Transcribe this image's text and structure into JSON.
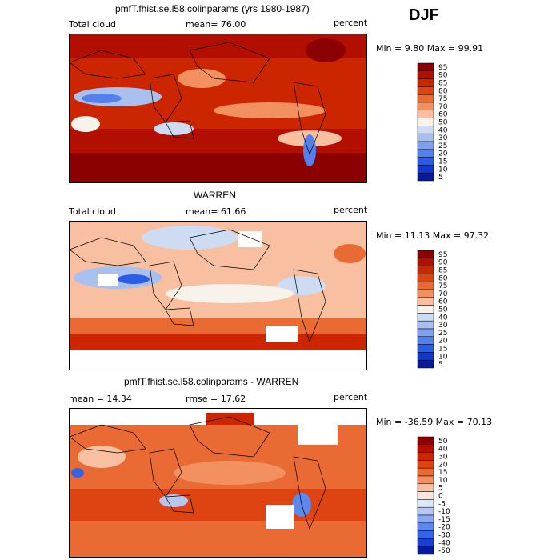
{
  "season": "DJF",
  "panels": [
    {
      "title": "pmfT.fhist.se.l58.colinparams (yrs 1980-1987)",
      "left_label": "Total cloud",
      "mean_text": "mean=  76.00",
      "units": "percent",
      "minmax": "Min =   9.80 Max =  99.91",
      "colorbar_labels": [
        "95",
        "90",
        "85",
        "80",
        "75",
        "70",
        "60",
        "50",
        "40",
        "30",
        "25",
        "20",
        "15",
        "10",
        "5"
      ]
    },
    {
      "title": "WARREN",
      "left_label": "Total cloud",
      "mean_text": "mean=  61.66",
      "units": "percent",
      "minmax": "Min =  11.13 Max =  97.32",
      "colorbar_labels": [
        "95",
        "90",
        "85",
        "80",
        "75",
        "70",
        "60",
        "50",
        "40",
        "30",
        "25",
        "20",
        "15",
        "10",
        "5"
      ]
    },
    {
      "title": "pmfT.fhist.se.l58.colinparams - WARREN",
      "left_label": "mean =  14.34",
      "mean_text": "rmse =  17.62",
      "units": "percent",
      "minmax": "Min = -36.59 Max =  70.13",
      "colorbar_labels": [
        "50",
        "40",
        "30",
        "20",
        "15",
        "10",
        "5",
        "0",
        "-5",
        "-10",
        "-15",
        "-20",
        "-30",
        "-40",
        "-50"
      ]
    }
  ],
  "colors": {
    "seq": [
      "#8b0000",
      "#b30f00",
      "#cc2600",
      "#dd4411",
      "#ea6a33",
      "#f39060",
      "#f8c0a0",
      "#f7f2ea",
      "#cddcf2",
      "#a8c0ee",
      "#7ea0ee",
      "#5380ec",
      "#2a5ce6",
      "#1038cf",
      "#061a9c"
    ],
    "diff": [
      "#8b0000",
      "#b30f00",
      "#cc2600",
      "#dd4411",
      "#ea6a33",
      "#f39060",
      "#f8c0a0",
      "#fbe6dc",
      "#dde8f7",
      "#b4c8f2",
      "#8aa8ef",
      "#5f88ec",
      "#3563e6",
      "#1a40d0",
      "#061a9c"
    ]
  }
}
